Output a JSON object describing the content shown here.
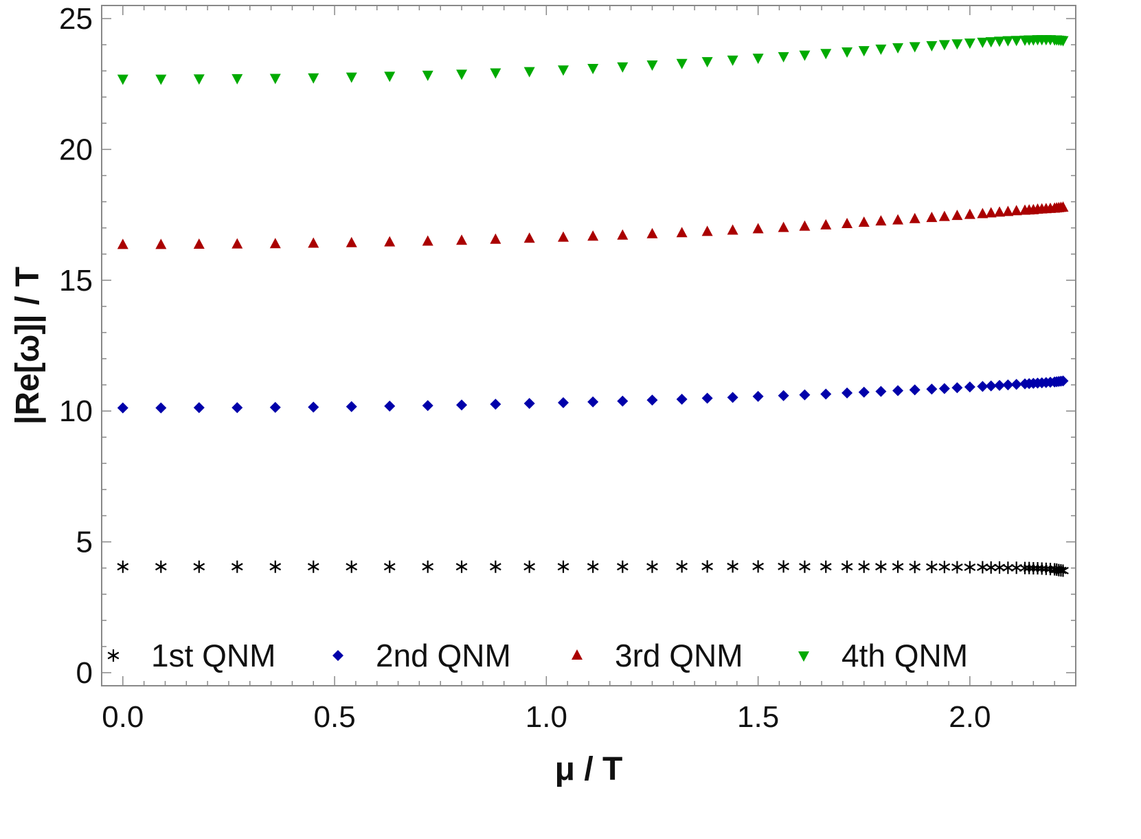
{
  "chart_data": {
    "type": "scatter",
    "title": "",
    "xlabel": "μ / T",
    "ylabel": "|Re[ω]| / T",
    "xlim": [
      -0.05,
      2.25
    ],
    "ylim": [
      -0.5,
      25.5
    ],
    "xticks": [
      0.0,
      0.5,
      1.0,
      1.5,
      2.0
    ],
    "xtick_labels": [
      "0.0",
      "0.5",
      "1.0",
      "1.5",
      "2.0"
    ],
    "yticks": [
      0,
      5,
      10,
      15,
      20,
      25
    ],
    "ytick_labels": [
      "0",
      "5",
      "10",
      "15",
      "20",
      "25"
    ],
    "grid": false,
    "legend_position": "bottom",
    "x": [
      0.0,
      0.09,
      0.18,
      0.27,
      0.36,
      0.45,
      0.54,
      0.63,
      0.72,
      0.8,
      0.88,
      0.96,
      1.04,
      1.11,
      1.18,
      1.25,
      1.32,
      1.38,
      1.44,
      1.5,
      1.56,
      1.61,
      1.66,
      1.71,
      1.75,
      1.79,
      1.83,
      1.87,
      1.91,
      1.94,
      1.97,
      2.0,
      2.03,
      2.05,
      2.07,
      2.09,
      2.11,
      2.13,
      2.14,
      2.15,
      2.16,
      2.17,
      2.18,
      2.19,
      2.2,
      2.205,
      2.21,
      2.215,
      2.22
    ],
    "series": [
      {
        "name": "1st QNM",
        "marker": "star",
        "color": "#000000",
        "values": [
          4.05,
          4.05,
          4.05,
          4.05,
          4.05,
          4.05,
          4.05,
          4.05,
          4.05,
          4.05,
          4.05,
          4.05,
          4.05,
          4.05,
          4.05,
          4.05,
          4.06,
          4.06,
          4.06,
          4.06,
          4.06,
          4.05,
          4.05,
          4.05,
          4.05,
          4.05,
          4.05,
          4.04,
          4.04,
          4.04,
          4.03,
          4.03,
          4.03,
          4.02,
          4.02,
          4.01,
          4.01,
          4.0,
          4.0,
          3.99,
          3.99,
          3.98,
          3.97,
          3.96,
          3.95,
          3.94,
          3.92,
          3.91,
          3.9
        ]
      },
      {
        "name": "2nd QNM",
        "marker": "diamond",
        "color": "#0000aa",
        "values": [
          10.12,
          10.12,
          10.13,
          10.13,
          10.14,
          10.15,
          10.17,
          10.19,
          10.21,
          10.23,
          10.26,
          10.29,
          10.32,
          10.35,
          10.38,
          10.42,
          10.45,
          10.49,
          10.52,
          10.56,
          10.59,
          10.62,
          10.65,
          10.69,
          10.72,
          10.75,
          10.78,
          10.81,
          10.84,
          10.86,
          10.89,
          10.92,
          10.94,
          10.96,
          10.98,
          11.0,
          11.02,
          11.04,
          11.05,
          11.06,
          11.07,
          11.08,
          11.09,
          11.1,
          11.11,
          11.12,
          11.13,
          11.14,
          11.15
        ]
      },
      {
        "name": "3rd QNM",
        "marker": "triangle-up",
        "color": "#aa0000",
        "values": [
          16.35,
          16.35,
          16.36,
          16.37,
          16.38,
          16.4,
          16.42,
          16.45,
          16.48,
          16.51,
          16.55,
          16.59,
          16.63,
          16.67,
          16.71,
          16.76,
          16.8,
          16.85,
          16.9,
          16.95,
          17.0,
          17.05,
          17.1,
          17.15,
          17.2,
          17.25,
          17.29,
          17.34,
          17.38,
          17.42,
          17.46,
          17.5,
          17.53,
          17.56,
          17.59,
          17.61,
          17.64,
          17.66,
          17.67,
          17.68,
          17.7,
          17.71,
          17.72,
          17.73,
          17.74,
          17.75,
          17.76,
          17.77,
          17.78
        ]
      },
      {
        "name": "4th QNM",
        "marker": "triangle-down",
        "color": "#00aa00",
        "values": [
          22.7,
          22.7,
          22.71,
          22.72,
          22.73,
          22.75,
          22.78,
          22.81,
          22.85,
          22.89,
          22.94,
          22.99,
          23.05,
          23.11,
          23.17,
          23.24,
          23.3,
          23.37,
          23.43,
          23.5,
          23.56,
          23.62,
          23.68,
          23.74,
          23.79,
          23.85,
          23.9,
          23.94,
          23.98,
          24.02,
          24.05,
          24.08,
          24.11,
          24.13,
          24.15,
          24.17,
          24.18,
          24.19,
          24.2,
          24.2,
          24.21,
          24.21,
          24.21,
          24.21,
          24.2,
          24.2,
          24.19,
          24.18,
          24.17
        ]
      }
    ]
  }
}
